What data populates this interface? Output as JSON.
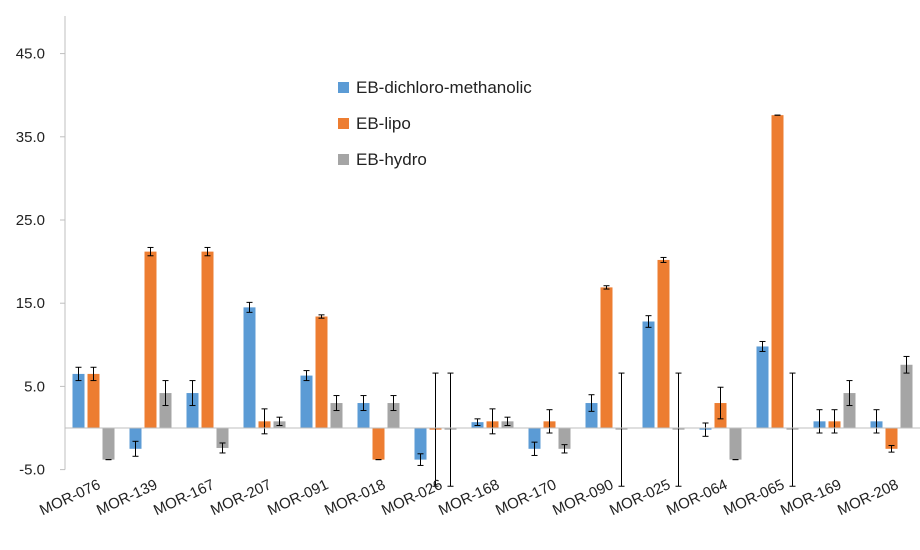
{
  "chart_data": {
    "type": "bar",
    "categories": [
      "MOR-076",
      "MOR-139",
      "MOR-167",
      "MOR-207",
      "MOR-091",
      "MOR-018",
      "MOR-026",
      "MOR-168",
      "MOR-170",
      "MOR-090",
      "MOR-025",
      "MOR-064",
      "MOR-065",
      "MOR-169",
      "MOR-208"
    ],
    "series": [
      {
        "name": "EB-dichloro-methanolic",
        "color": "#5b9bd5",
        "values": [
          6.5,
          -2.5,
          4.2,
          14.5,
          6.3,
          3.0,
          -3.8,
          0.7,
          -2.5,
          3.0,
          12.8,
          -0.2,
          9.8,
          0.8,
          0.8
        ],
        "errors": [
          0.8,
          0.9,
          1.5,
          0.6,
          0.6,
          0.9,
          0.7,
          0.4,
          0.8,
          1.0,
          0.7,
          0.8,
          0.6,
          1.4,
          1.4
        ]
      },
      {
        "name": "EB-lipo",
        "color": "#ed7d31",
        "values": [
          6.5,
          21.2,
          21.2,
          0.8,
          13.4,
          -3.8,
          -0.2,
          0.8,
          0.8,
          16.9,
          20.2,
          3.0,
          37.6,
          0.8,
          -2.5
        ],
        "errors": [
          0.8,
          0.5,
          0.5,
          1.5,
          0.2,
          0.0,
          6.8,
          1.5,
          1.4,
          0.2,
          0.3,
          1.9,
          0.0,
          1.4,
          0.4
        ]
      },
      {
        "name": "EB-hydro",
        "color": "#a5a5a5",
        "values": [
          -3.8,
          4.2,
          -2.4,
          0.8,
          3.0,
          3.0,
          -0.2,
          0.8,
          -2.5,
          -0.2,
          -0.2,
          -3.8,
          -0.2,
          4.2,
          7.6
        ],
        "errors": [
          0.0,
          1.5,
          0.6,
          0.5,
          0.9,
          0.9,
          6.8,
          0.5,
          0.5,
          6.8,
          6.8,
          0.0,
          6.8,
          1.5,
          1.0
        ]
      }
    ],
    "yticks": [
      "-5.0",
      "5.0",
      "15.0",
      "25.0",
      "35.0",
      "45.0"
    ],
    "ylim": [
      -5,
      50
    ],
    "grid": false,
    "legend_position": "upper-middle"
  }
}
